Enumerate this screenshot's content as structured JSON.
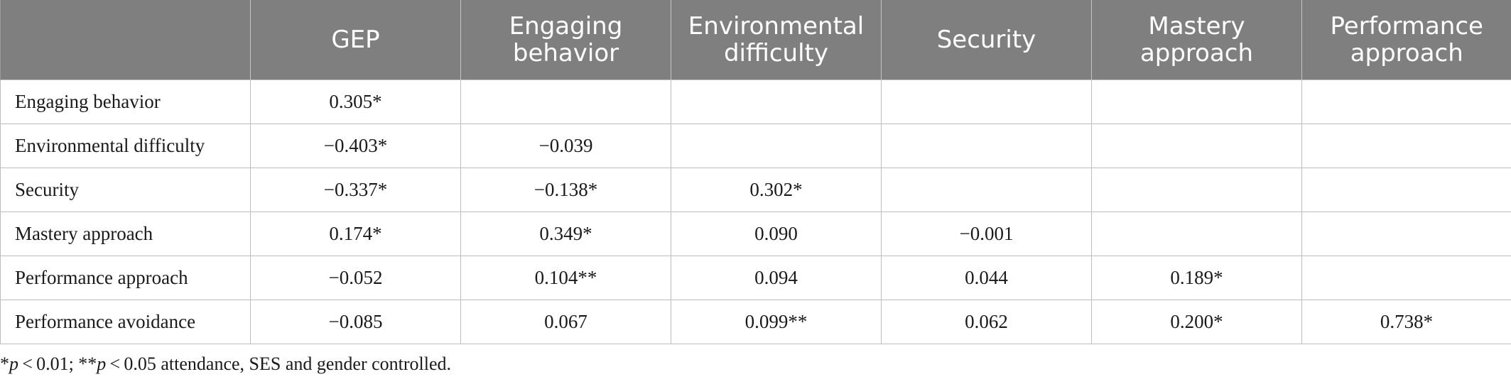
{
  "table": {
    "headers": [
      "",
      "GEP",
      "Engaging behavior",
      "Environmental difficulty",
      "Security",
      "Mastery approach",
      "Performance approach"
    ],
    "header_lines": [
      [
        ""
      ],
      [
        "GEP"
      ],
      [
        "Engaging",
        "behavior"
      ],
      [
        "Environmental",
        "difficulty"
      ],
      [
        "Security"
      ],
      [
        "Mastery",
        "approach"
      ],
      [
        "Performance",
        "approach"
      ]
    ],
    "rows": [
      {
        "label": "Engaging behavior",
        "cells": [
          "0.305*",
          "",
          "",
          "",
          "",
          ""
        ]
      },
      {
        "label": "Environmental difficulty",
        "cells": [
          "−0.403*",
          "−0.039",
          "",
          "",
          "",
          ""
        ]
      },
      {
        "label": "Security",
        "cells": [
          "−0.337*",
          "−0.138*",
          "0.302*",
          "",
          "",
          ""
        ]
      },
      {
        "label": "Mastery approach",
        "cells": [
          "0.174*",
          "0.349*",
          "0.090",
          "−0.001",
          "",
          ""
        ]
      },
      {
        "label": "Performance approach",
        "cells": [
          "−0.052",
          "0.104**",
          "0.094",
          "0.044",
          "0.189*",
          ""
        ]
      },
      {
        "label": "Performance avoidance",
        "cells": [
          "−0.085",
          "0.067",
          "0.099**",
          "0.062",
          "0.200*",
          "0.738*"
        ]
      }
    ]
  },
  "footnote": {
    "p1_prefix": "*",
    "p1_var": "p",
    "p1_rest": " < 0.01; **",
    "p2_var": "p",
    "p2_rest": " < 0.05 attendance, SES and gender controlled."
  }
}
